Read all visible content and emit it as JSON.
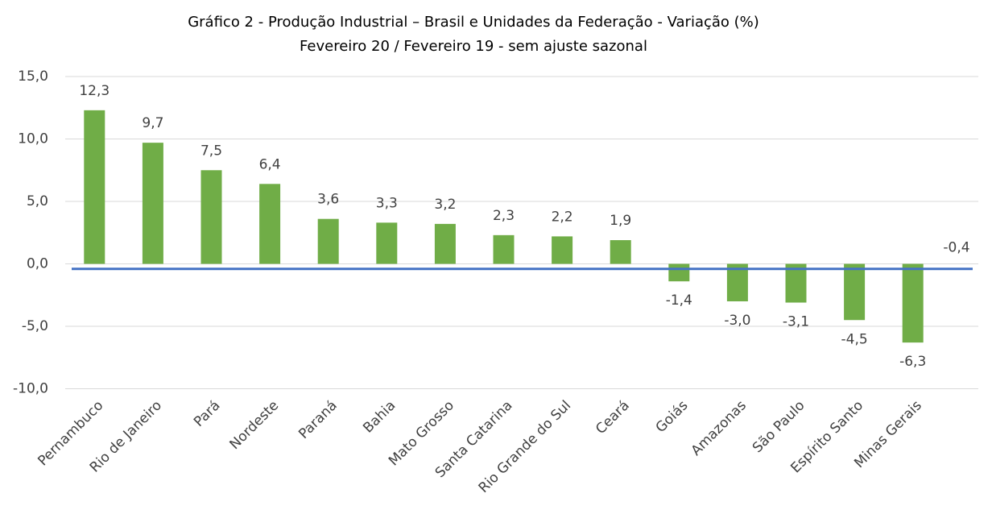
{
  "chart_data": {
    "type": "bar",
    "title": "Gráfico 2 - Produção Industrial – Brasil e Unidades da Federação - Variação (%)",
    "subtitle": "Fevereiro 20 / Fevereiro 19 - sem ajuste sazonal",
    "categories": [
      "Pernambuco",
      "Rio de Janeiro",
      "Pará",
      "Nordeste",
      "Paraná",
      "Bahia",
      "Mato Grosso",
      "Santa Catarina",
      "Rio Grande do Sul",
      "Ceará",
      "Goiás",
      "Amazonas",
      "São Paulo",
      "Espírito Santo",
      "Minas Gerais"
    ],
    "values": [
      12.3,
      9.7,
      7.5,
      6.4,
      3.6,
      3.3,
      3.2,
      2.3,
      2.2,
      1.9,
      -1.4,
      -3.0,
      -3.1,
      -4.5,
      -6.3
    ],
    "value_labels": [
      "12,3",
      "9,7",
      "7,5",
      "6,4",
      "3,6",
      "3,3",
      "3,2",
      "2,3",
      "2,2",
      "1,9",
      "-1,4",
      "-3,0",
      "-3,1",
      "-4,5",
      "-6,3"
    ],
    "color": "#70ad47",
    "reference_line": {
      "value": -0.4,
      "value_label": "-0,4",
      "color": "#4472c4"
    },
    "ylim": [
      -10,
      15
    ],
    "yticks": [
      {
        "value": -10,
        "label": "-10,0"
      },
      {
        "value": -5,
        "label": "-5,0"
      },
      {
        "value": 0,
        "label": "0,0"
      },
      {
        "value": 5,
        "label": "5,0"
      },
      {
        "value": 10,
        "label": "10,0"
      },
      {
        "value": 15,
        "label": "15,0"
      }
    ],
    "grid": true
  }
}
